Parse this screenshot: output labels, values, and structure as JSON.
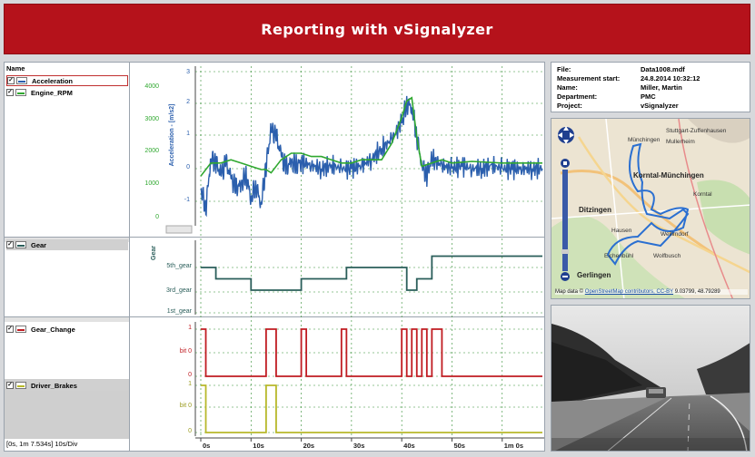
{
  "banner": {
    "title": "Reporting with vSignalyzer"
  },
  "legend": {
    "header": "Name",
    "signals": [
      {
        "label": "Acceleration",
        "color": "#2b5fad",
        "checked": "✓"
      },
      {
        "label": "Engine_RPM",
        "color": "#2fa82f",
        "checked": "✓"
      },
      {
        "label": "Gear",
        "color": "#2a5e5a",
        "checked": "✓"
      },
      {
        "label": "Gear_Change",
        "color": "#c01c22",
        "checked": "✓"
      },
      {
        "label": "Driver_Brakes",
        "color": "#b7b82a",
        "checked": "✓"
      }
    ],
    "status": "[0s, 1m 7.534s] 10s/Div"
  },
  "chart_data": [
    {
      "type": "line",
      "title": "",
      "series": [
        {
          "name": "Acceleration",
          "color": "#2b5fad",
          "unit": "Acceleration - [m/s2]",
          "ylim": [
            -1.6,
            3
          ],
          "x": [
            0,
            1,
            2,
            3,
            4,
            5,
            6,
            7,
            8,
            9,
            10,
            11,
            12,
            13,
            14,
            15,
            16,
            17,
            18,
            19,
            20,
            22,
            24,
            26,
            28,
            30,
            32,
            34,
            36,
            38,
            40,
            41,
            42,
            43,
            44,
            45,
            46,
            48,
            50,
            52,
            54,
            56,
            58,
            60,
            62,
            64,
            66,
            68
          ],
          "y": [
            -0.6,
            -1.2,
            0.3,
            0.2,
            -0.2,
            0.2,
            -0.3,
            -0.6,
            -0.5,
            -0.2,
            -0.9,
            -0.5,
            -1.1,
            0.1,
            1.2,
            1.0,
            0.4,
            0.0,
            0.2,
            0.1,
            0.2,
            0.1,
            0.0,
            0.1,
            0.0,
            0.0,
            0.1,
            0.3,
            0.6,
            0.9,
            1.4,
            2.0,
            1.9,
            1.0,
            0.1,
            -0.2,
            0.3,
            0.1,
            0.0,
            0.1,
            0.0,
            0.0,
            0.1,
            0.0,
            0.0,
            0.0,
            0.0,
            0.0
          ]
        },
        {
          "name": "Engine_RPM",
          "color": "#2fa82f",
          "unit": "",
          "ylim": [
            0,
            4400
          ],
          "x": [
            0,
            2,
            4,
            6,
            8,
            10,
            12,
            13,
            14,
            16,
            18,
            20,
            22,
            24,
            26,
            28,
            30,
            32,
            34,
            36,
            38,
            40,
            41,
            42,
            43,
            44,
            46,
            48,
            50,
            54,
            60,
            68
          ],
          "y": [
            1300,
            1700,
            1700,
            1800,
            1700,
            1600,
            1500,
            1500,
            1400,
            1800,
            2000,
            2000,
            1900,
            1900,
            1800,
            1700,
            1700,
            1800,
            1800,
            1800,
            2300,
            3100,
            3600,
            3700,
            2500,
            1600,
            1700,
            1800,
            1700,
            1750,
            1700,
            1700
          ]
        }
      ],
      "yticks_left": [
        "4000",
        "3000",
        "2000",
        "1000",
        "0"
      ],
      "yticks_right": [
        "3",
        "2",
        "1",
        "0",
        "-1"
      ]
    },
    {
      "type": "line",
      "ylabel": "Gear",
      "yticks": [
        "5th_gear",
        "3rd_gear",
        "1st_gear"
      ],
      "series": [
        {
          "name": "Gear",
          "x": [
            0,
            3,
            8,
            10,
            13,
            20,
            22,
            28,
            29,
            34,
            40,
            41,
            43,
            44,
            46,
            68
          ],
          "y": [
            5,
            4,
            4,
            3,
            3,
            4,
            4,
            4,
            5,
            5,
            5,
            3,
            4,
            4,
            6,
            6
          ]
        }
      ]
    },
    {
      "type": "line",
      "yticks": [
        "1",
        "bit 0",
        "0"
      ],
      "series": [
        {
          "name": "Gear_Change",
          "x": [
            0,
            0,
            1,
            1,
            13,
            13,
            15,
            15,
            20,
            20,
            21,
            21,
            28,
            28,
            29,
            29,
            40,
            40,
            41,
            41,
            42,
            42,
            43,
            43,
            44,
            44,
            45,
            45,
            46,
            46,
            48,
            48,
            68
          ],
          "y": [
            1,
            1,
            1,
            0,
            0,
            1,
            1,
            0,
            0,
            1,
            1,
            0,
            0,
            1,
            1,
            0,
            0,
            1,
            1,
            0,
            0,
            1,
            1,
            0,
            0,
            1,
            1,
            0,
            0,
            1,
            1,
            0,
            0
          ]
        }
      ]
    },
    {
      "type": "line",
      "yticks": [
        "1",
        "bit 0",
        "0"
      ],
      "series": [
        {
          "name": "Driver_Brakes",
          "x": [
            0,
            0,
            1,
            1,
            13,
            13,
            15,
            15,
            68
          ],
          "y": [
            1,
            1,
            1,
            0,
            0,
            1,
            1,
            0,
            0
          ]
        }
      ]
    }
  ],
  "time_axis": {
    "ticks": [
      "0s",
      "10s",
      "20s",
      "30s",
      "40s",
      "50s",
      "1m 0s"
    ]
  },
  "info": {
    "rows": [
      {
        "key": "File:",
        "value": "Data1008.mdf"
      },
      {
        "key": "Measurement start:",
        "value": "24.8.2014 10:32:12"
      },
      {
        "key": "Name:",
        "value": "Miller, Martin"
      },
      {
        "key": "Department:",
        "value": "PMC"
      },
      {
        "key": "Project:",
        "value": "vSignalyzer"
      }
    ]
  },
  "map": {
    "labels": {
      "muenchingen": "Münchingen",
      "muellerheim": "Mullerheim",
      "zuffenhausen": "Stuttgart-Zuffenhausen",
      "korntal_muenchingen": "Korntal-Münchingen",
      "korntal": "Korntal",
      "ditzingen": "Ditzingen",
      "hausen": "Hausen",
      "weilimdorf": "Weilimdorf",
      "wolfbusch": "Wolfbusch",
      "gerlingen": "Gerlingen",
      "eichenbuehl": "Eichenbühl"
    },
    "attribution_prefix": "Map data ©",
    "attribution_link": "OpenStreetMap contributors, CC-BY",
    "coords": "9.03799, 48.79289"
  }
}
